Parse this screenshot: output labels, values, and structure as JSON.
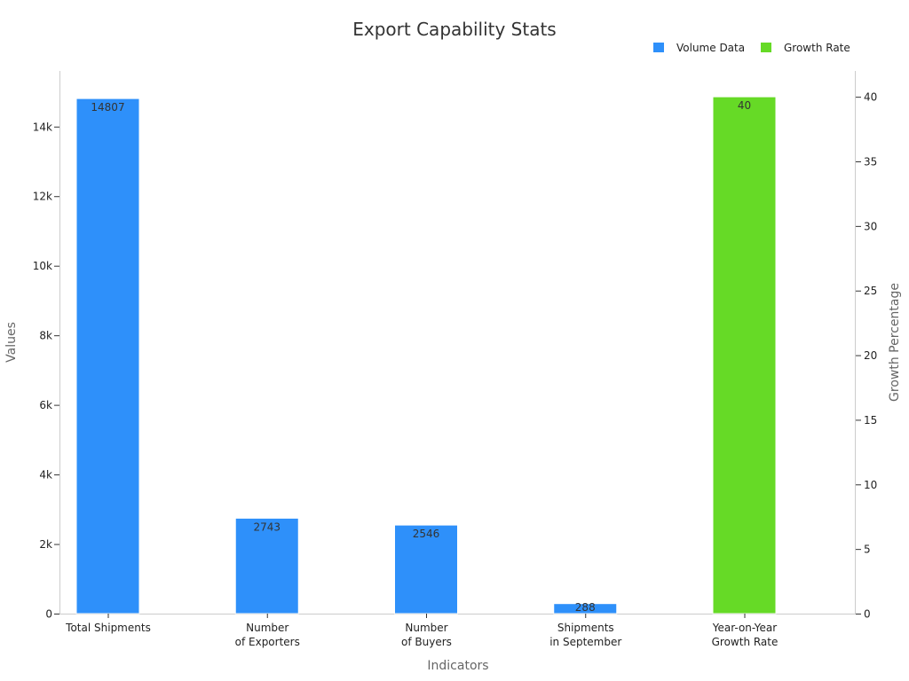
{
  "chart_data": {
    "type": "bar",
    "title": "Export Capability Stats",
    "xlabel": "Indicators",
    "ylabel": "Values",
    "y2label": "Growth Percentage",
    "categories": [
      [
        "Total Shipments"
      ],
      [
        "Number",
        "of Exporters"
      ],
      [
        "Number",
        "of Buyers"
      ],
      [
        "Shipments",
        "in September"
      ],
      [
        "Year-on-Year",
        "Growth Rate"
      ]
    ],
    "ylim": [
      0,
      15600
    ],
    "y2lim": [
      0,
      42
    ],
    "yticks": [
      {
        "value": 0,
        "label": "0"
      },
      {
        "value": 2000,
        "label": "2k"
      },
      {
        "value": 4000,
        "label": "4k"
      },
      {
        "value": 6000,
        "label": "6k"
      },
      {
        "value": 8000,
        "label": "8k"
      },
      {
        "value": 10000,
        "label": "10k"
      },
      {
        "value": 12000,
        "label": "12k"
      },
      {
        "value": 14000,
        "label": "14k"
      }
    ],
    "y2ticks": [
      0,
      5,
      10,
      15,
      20,
      25,
      30,
      35,
      40
    ],
    "series": [
      {
        "name": "Volume Data",
        "axis": "left",
        "color": "#2E90FA",
        "values": [
          14807,
          2743,
          2546,
          288,
          null
        ],
        "labels": [
          "14807",
          "2743",
          "2546",
          "288",
          ""
        ]
      },
      {
        "name": "Growth Rate",
        "axis": "right",
        "color": "#66DA26",
        "values": [
          null,
          null,
          null,
          null,
          40
        ],
        "labels": [
          "",
          "",
          "",
          "",
          "40"
        ]
      }
    ],
    "legend": "top-right",
    "grid": false
  }
}
